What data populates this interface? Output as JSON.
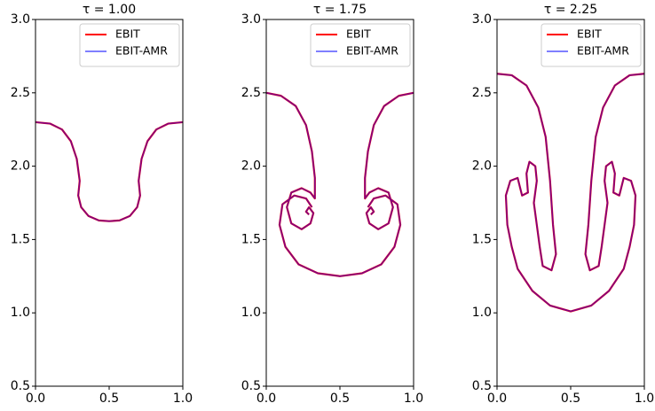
{
  "chart_data": [
    {
      "type": "line",
      "title": "τ = 1.00",
      "legend": "upper right",
      "xlim": [
        0,
        1
      ],
      "ylim": [
        0.5,
        3.0
      ],
      "xticks": [
        {
          "value": 0,
          "label": "0.0"
        },
        0.5,
        {
          "value": 1,
          "label": "1.0"
        }
      ],
      "yticks": [
        0.5,
        {
          "value": 1,
          "label": "1.0"
        },
        1.5,
        {
          "value": 2,
          "label": "2.0"
        },
        2.5,
        {
          "value": 3,
          "label": "3.0"
        }
      ],
      "series": [
        {
          "name": "EBIT",
          "color": "#ff0000",
          "alpha": 1,
          "x": [
            0,
            0.1,
            0.18,
            0.24,
            0.28,
            0.3,
            0.29,
            0.31,
            0.36,
            0.43,
            0.5,
            0.57,
            0.64,
            0.69,
            0.71,
            0.7,
            0.72,
            0.76,
            0.82,
            0.9,
            1.0
          ],
          "values": [
            2.3,
            2.29,
            2.25,
            2.17,
            2.05,
            1.9,
            1.8,
            1.72,
            1.66,
            1.63,
            1.625,
            1.63,
            1.66,
            1.72,
            1.8,
            1.9,
            2.05,
            2.17,
            2.25,
            2.29,
            2.3
          ]
        },
        {
          "name": "EBIT-AMR",
          "color": "#0000ff",
          "alpha": 0.5,
          "x": [
            0,
            0.1,
            0.18,
            0.24,
            0.28,
            0.3,
            0.29,
            0.31,
            0.36,
            0.43,
            0.5,
            0.57,
            0.64,
            0.69,
            0.71,
            0.7,
            0.72,
            0.76,
            0.82,
            0.9,
            1.0
          ],
          "values": [
            2.3,
            2.29,
            2.25,
            2.17,
            2.05,
            1.9,
            1.8,
            1.72,
            1.66,
            1.63,
            1.625,
            1.63,
            1.66,
            1.72,
            1.8,
            1.9,
            2.05,
            2.17,
            2.25,
            2.29,
            2.3
          ]
        }
      ]
    },
    {
      "type": "line",
      "title": "τ = 1.75",
      "legend": "upper right",
      "xlim": [
        0,
        1
      ],
      "ylim": [
        0.5,
        3.0
      ],
      "xticks": [
        {
          "value": 0,
          "label": "0.0"
        },
        0.5,
        {
          "value": 1,
          "label": "1.0"
        }
      ],
      "yticks": [
        0.5,
        {
          "value": 1,
          "label": "1.0"
        },
        1.5,
        {
          "value": 2,
          "label": "2.0"
        },
        2.5,
        {
          "value": 3,
          "label": "3.0"
        }
      ],
      "series": [
        {
          "name": "EBIT",
          "color": "#ff0000",
          "alpha": 1,
          "x": [
            0,
            0.1,
            0.2,
            0.27,
            0.31,
            0.33,
            0.33,
            0.3,
            0.24,
            0.17,
            0.14,
            0.17,
            0.24,
            0.3,
            0.32,
            0.29,
            0.27,
            0.29,
            null,
            0.31,
            0.27,
            0.19,
            0.11,
            0.09,
            0.13,
            0.22,
            0.35,
            0.5,
            0.65,
            0.78,
            0.87,
            0.91,
            0.89,
            0.81,
            0.73,
            0.69,
            null,
            0.71,
            0.73,
            0.71,
            0.68,
            0.7,
            0.76,
            0.83,
            0.86,
            0.83,
            0.76,
            0.7,
            0.67,
            0.67,
            0.69,
            0.73,
            0.8,
            0.9,
            1.0
          ],
          "values": [
            2.5,
            2.48,
            2.41,
            2.28,
            2.1,
            1.92,
            1.78,
            1.82,
            1.85,
            1.82,
            1.72,
            1.61,
            1.57,
            1.61,
            1.68,
            1.72,
            1.69,
            1.67,
            null,
            1.72,
            1.78,
            1.8,
            1.74,
            1.6,
            1.45,
            1.33,
            1.27,
            1.25,
            1.27,
            1.33,
            1.45,
            1.6,
            1.74,
            1.8,
            1.78,
            1.72,
            null,
            1.67,
            1.69,
            1.72,
            1.68,
            1.61,
            1.57,
            1.61,
            1.72,
            1.82,
            1.85,
            1.82,
            1.78,
            1.92,
            2.1,
            2.28,
            2.41,
            2.48,
            2.5
          ]
        },
        {
          "name": "EBIT-AMR",
          "color": "#0000ff",
          "alpha": 0.5,
          "x": [
            0,
            0.1,
            0.2,
            0.27,
            0.31,
            0.33,
            0.33,
            0.3,
            0.24,
            0.17,
            0.14,
            0.17,
            0.24,
            0.3,
            0.32,
            0.29,
            0.27,
            0.29,
            null,
            0.31,
            0.27,
            0.19,
            0.11,
            0.09,
            0.13,
            0.22,
            0.35,
            0.5,
            0.65,
            0.78,
            0.87,
            0.91,
            0.89,
            0.81,
            0.73,
            0.69,
            null,
            0.71,
            0.73,
            0.71,
            0.68,
            0.7,
            0.76,
            0.83,
            0.86,
            0.83,
            0.76,
            0.7,
            0.67,
            0.67,
            0.69,
            0.73,
            0.8,
            0.9,
            1.0
          ],
          "values": [
            2.5,
            2.48,
            2.41,
            2.28,
            2.1,
            1.92,
            1.78,
            1.82,
            1.85,
            1.82,
            1.72,
            1.61,
            1.57,
            1.61,
            1.68,
            1.72,
            1.69,
            1.67,
            null,
            1.72,
            1.78,
            1.8,
            1.74,
            1.6,
            1.45,
            1.33,
            1.27,
            1.25,
            1.27,
            1.33,
            1.45,
            1.6,
            1.74,
            1.8,
            1.78,
            1.72,
            null,
            1.67,
            1.69,
            1.72,
            1.68,
            1.61,
            1.57,
            1.61,
            1.72,
            1.82,
            1.85,
            1.82,
            1.78,
            1.92,
            2.1,
            2.28,
            2.41,
            2.48,
            2.5
          ]
        }
      ]
    },
    {
      "type": "line",
      "title": "τ = 2.25",
      "legend": "upper right",
      "xlim": [
        0,
        1
      ],
      "ylim": [
        0.5,
        3.0
      ],
      "xticks": [
        {
          "value": 0,
          "label": "0.0"
        },
        0.5,
        {
          "value": 1,
          "label": "1.0"
        }
      ],
      "yticks": [
        0.5,
        {
          "value": 1,
          "label": "1.0"
        },
        1.5,
        {
          "value": 2,
          "label": "2.0"
        },
        2.5,
        {
          "value": 3,
          "label": "3.0"
        }
      ],
      "series": [
        {
          "name": "EBIT",
          "color": "#ff0000",
          "alpha": 1,
          "x": [
            0,
            0.1,
            0.2,
            0.28,
            0.33,
            0.36,
            0.38,
            0.4,
            0.37,
            0.31,
            0.29,
            0.27,
            0.25,
            0.27,
            0.26,
            0.22,
            0.2,
            0.21,
            0.17,
            0.14,
            0.09,
            0.06,
            0.07,
            0.1,
            0.14,
            0.24,
            0.36,
            0.5,
            0.64,
            0.76,
            0.86,
            0.9,
            0.93,
            0.94,
            0.91,
            0.86,
            0.83,
            0.79,
            0.8,
            0.78,
            0.74,
            0.73,
            0.75,
            0.73,
            0.71,
            0.69,
            0.63,
            0.6,
            0.62,
            0.64,
            0.67,
            0.72,
            0.8,
            0.9,
            1.0
          ],
          "values": [
            2.63,
            2.62,
            2.55,
            2.4,
            2.2,
            1.9,
            1.6,
            1.4,
            1.29,
            1.32,
            1.45,
            1.6,
            1.75,
            1.9,
            2.0,
            2.03,
            1.95,
            1.82,
            1.8,
            1.92,
            1.9,
            1.8,
            1.6,
            1.45,
            1.3,
            1.15,
            1.05,
            1.01,
            1.05,
            1.15,
            1.3,
            1.45,
            1.6,
            1.8,
            1.9,
            1.92,
            1.8,
            1.82,
            1.95,
            2.03,
            2.0,
            1.9,
            1.75,
            1.6,
            1.45,
            1.32,
            1.29,
            1.4,
            1.6,
            1.9,
            2.2,
            2.4,
            2.55,
            2.62,
            2.63
          ]
        },
        {
          "name": "EBIT-AMR",
          "color": "#0000ff",
          "alpha": 0.5,
          "x": [
            0,
            0.1,
            0.2,
            0.28,
            0.33,
            0.36,
            0.38,
            0.4,
            0.37,
            0.31,
            0.29,
            0.27,
            0.25,
            0.27,
            0.26,
            0.22,
            0.2,
            0.21,
            0.17,
            0.14,
            0.09,
            0.06,
            0.07,
            0.1,
            0.14,
            0.24,
            0.36,
            0.5,
            0.64,
            0.76,
            0.86,
            0.9,
            0.93,
            0.94,
            0.91,
            0.86,
            0.83,
            0.79,
            0.8,
            0.78,
            0.74,
            0.73,
            0.75,
            0.73,
            0.71,
            0.69,
            0.63,
            0.6,
            0.62,
            0.64,
            0.67,
            0.72,
            0.8,
            0.9,
            1.0
          ],
          "values": [
            2.63,
            2.62,
            2.55,
            2.4,
            2.2,
            1.9,
            1.6,
            1.4,
            1.29,
            1.32,
            1.45,
            1.6,
            1.75,
            1.9,
            2.0,
            2.03,
            1.95,
            1.82,
            1.8,
            1.92,
            1.9,
            1.8,
            1.6,
            1.45,
            1.3,
            1.15,
            1.05,
            1.01,
            1.05,
            1.15,
            1.3,
            1.45,
            1.6,
            1.8,
            1.9,
            1.92,
            1.8,
            1.82,
            1.95,
            2.03,
            2.0,
            1.9,
            1.75,
            1.6,
            1.45,
            1.32,
            1.29,
            1.4,
            1.6,
            1.9,
            2.2,
            2.4,
            2.55,
            2.62,
            2.63
          ]
        }
      ]
    }
  ]
}
